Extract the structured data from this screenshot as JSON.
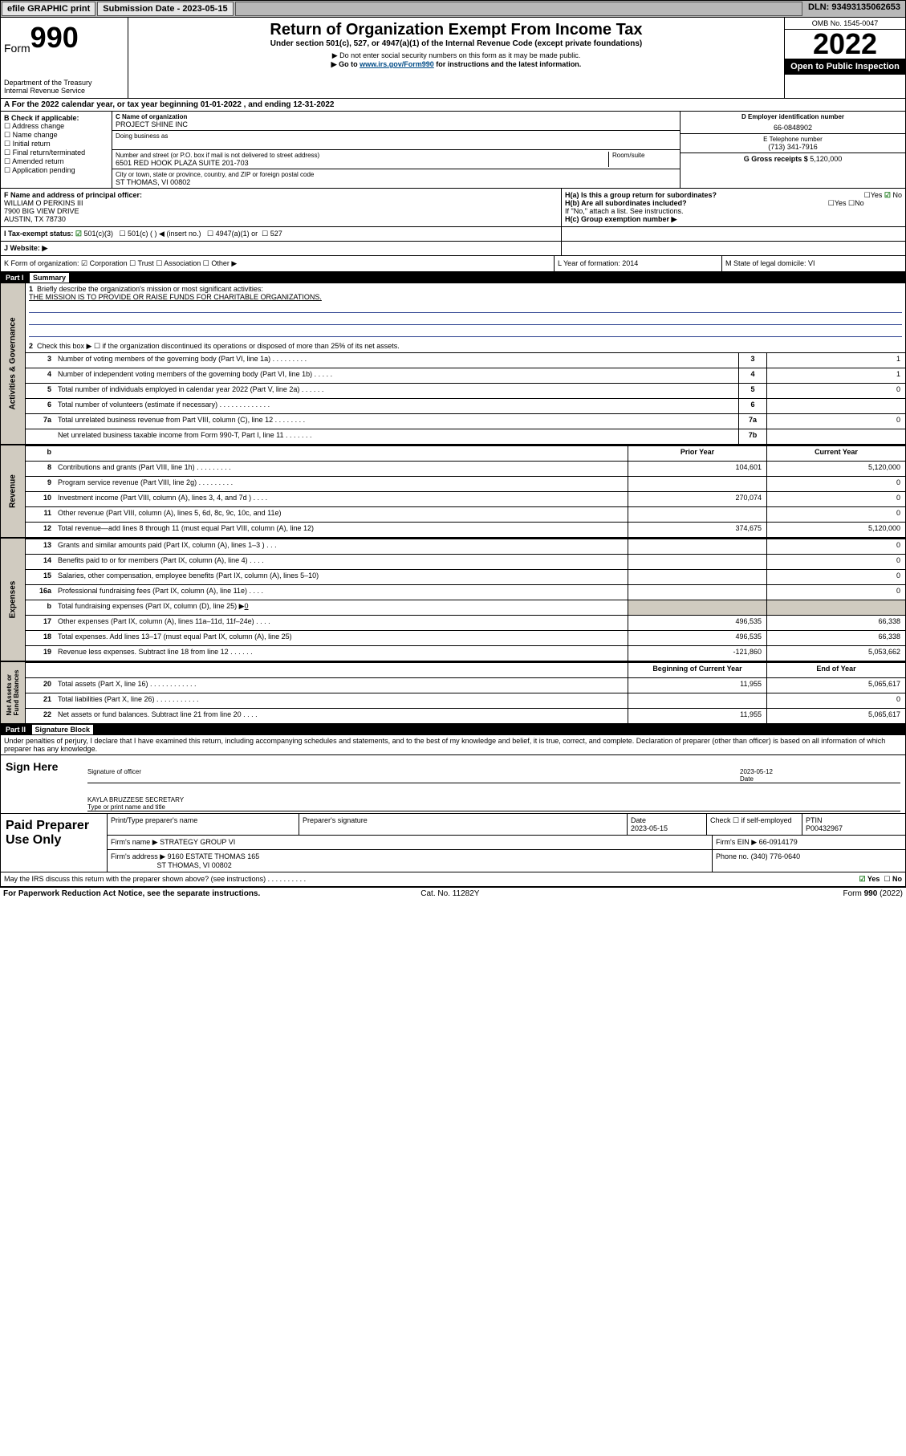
{
  "topbar": {
    "efile": "efile GRAPHIC print",
    "sub_label": "Submission Date - 2023-05-15",
    "dln": "DLN: 93493135062653"
  },
  "header": {
    "form_word": "Form",
    "form_num": "990",
    "title": "Return of Organization Exempt From Income Tax",
    "sub1": "Under section 501(c), 527, or 4947(a)(1) of the Internal Revenue Code (except private foundations)",
    "sub2": "▶ Do not enter social security numbers on this form as it may be made public.",
    "sub3_pre": "▶ Go to ",
    "sub3_link": "www.irs.gov/Form990",
    "sub3_post": " for instructions and the latest information.",
    "dept": "Department of the Treasury\nInternal Revenue Service",
    "omb": "OMB No. 1545-0047",
    "year": "2022",
    "openpub": "Open to Public Inspection"
  },
  "A": "A For the 2022 calendar year, or tax year beginning 01-01-2022   , and ending 12-31-2022",
  "B": {
    "label": "B Check if applicable:",
    "items": [
      "Address change",
      "Name change",
      "Initial return",
      "Final return/terminated",
      "Amended return",
      "Application pending"
    ]
  },
  "C": {
    "name_label": "C Name of organization",
    "name": "PROJECT SHINE INC",
    "dba_label": "Doing business as",
    "addr_label": "Number and street (or P.O. box if mail is not delivered to street address)",
    "room": "Room/suite",
    "addr": "6501 RED HOOK PLAZA SUITE 201-703",
    "city_label": "City or town, state or province, country, and ZIP or foreign postal code",
    "city": "ST THOMAS, VI  00802"
  },
  "D": {
    "label": "D Employer identification number",
    "val": "66-0848902"
  },
  "E": {
    "label": "E Telephone number",
    "val": "(713) 341-7916"
  },
  "G": {
    "label": "G Gross receipts $",
    "val": "5,120,000"
  },
  "F": {
    "label": "F  Name and address of principal officer:",
    "l1": "WILLIAM O PERKINS III",
    "l2": "7900 BIG VIEW DRIVE",
    "l3": "AUSTIN, TX  78730"
  },
  "H": {
    "a": "H(a)  Is this a group return for subordinates?",
    "a_yes": "Yes",
    "a_no": "No",
    "b": "H(b)  Are all subordinates included?",
    "b_yes": "Yes",
    "b_no": "No",
    "note": "If \"No,\" attach a list. See instructions.",
    "c": "H(c)  Group exemption number ▶"
  },
  "I": {
    "label": "I   Tax-exempt status:",
    "o1": "501(c)(3)",
    "o2": "501(c) (  ) ◀ (insert no.)",
    "o3": "4947(a)(1) or",
    "o4": "527"
  },
  "J": "J   Website: ▶",
  "K": "K Form of organization:   ☑ Corporation  ☐ Trust  ☐ Association  ☐ Other ▶",
  "L": "L Year of formation: 2014",
  "M": "M State of legal domicile: VI",
  "partI": {
    "hdr": "Part I",
    "title": "Summary"
  },
  "summary": {
    "q1": "Briefly describe the organization's mission or most significant activities:",
    "mission": "THE MISSION IS TO PROVIDE OR RAISE FUNDS FOR CHARITABLE ORGANIZATIONS.",
    "q2": "Check this box ▶ ☐  if the organization discontinued its operations or disposed of more than 25% of its net assets.",
    "rows_single": [
      {
        "n": "3",
        "d": "Number of voting members of the governing body (Part VI, line 1a)  .   .   .   .   .   .   .   .   .",
        "box": "3",
        "v": "1"
      },
      {
        "n": "4",
        "d": "Number of independent voting members of the governing body (Part VI, line 1b)  .   .   .   .   .",
        "box": "4",
        "v": "1"
      },
      {
        "n": "5",
        "d": "Total number of individuals employed in calendar year 2022 (Part V, line 2a)  .   .   .   .   .   .",
        "box": "5",
        "v": "0"
      },
      {
        "n": "6",
        "d": "Total number of volunteers (estimate if necessary)  .   .   .   .   .   .   .   .   .   .   .   .   .",
        "box": "6",
        "v": ""
      },
      {
        "n": "7a",
        "d": "Total unrelated business revenue from Part VIII, column (C), line 12  .   .   .   .   .   .   .   .",
        "box": "7a",
        "v": "0"
      },
      {
        "n": "",
        "d": "Net unrelated business taxable income from Form 990-T, Part I, line 11  .   .   .   .   .   .   .",
        "box": "7b",
        "v": ""
      }
    ],
    "hdr_prior": "Prior Year",
    "hdr_curr": "Current Year",
    "rows_rev": [
      {
        "n": "8",
        "d": "Contributions and grants (Part VIII, line 1h)  .   .   .   .   .   .   .   .   .",
        "p": "104,601",
        "c": "5,120,000"
      },
      {
        "n": "9",
        "d": "Program service revenue (Part VIII, line 2g)  .   .   .   .   .   .   .   .   .",
        "p": "",
        "c": "0"
      },
      {
        "n": "10",
        "d": "Investment income (Part VIII, column (A), lines 3, 4, and 7d )  .   .   .   .",
        "p": "270,074",
        "c": "0"
      },
      {
        "n": "11",
        "d": "Other revenue (Part VIII, column (A), lines 5, 6d, 8c, 9c, 10c, and 11e)",
        "p": "",
        "c": "0"
      },
      {
        "n": "12",
        "d": "Total revenue—add lines 8 through 11 (must equal Part VIII, column (A), line 12)",
        "p": "374,675",
        "c": "5,120,000"
      }
    ],
    "rows_exp": [
      {
        "n": "13",
        "d": "Grants and similar amounts paid (Part IX, column (A), lines 1–3 )  .   .   .",
        "p": "",
        "c": "0"
      },
      {
        "n": "14",
        "d": "Benefits paid to or for members (Part IX, column (A), line 4)  .   .   .   .",
        "p": "",
        "c": "0"
      },
      {
        "n": "15",
        "d": "Salaries, other compensation, employee benefits (Part IX, column (A), lines 5–10)",
        "p": "",
        "c": "0"
      },
      {
        "n": "16a",
        "d": "Professional fundraising fees (Part IX, column (A), line 11e)  .   .   .   .",
        "p": "",
        "c": "0"
      }
    ],
    "row16b": {
      "n": "b",
      "d_pre": "Total fundraising expenses (Part IX, column (D), line 25) ▶",
      "d_val": "0"
    },
    "rows_exp2": [
      {
        "n": "17",
        "d": "Other expenses (Part IX, column (A), lines 11a–11d, 11f–24e)  .   .   .   .",
        "p": "496,535",
        "c": "66,338"
      },
      {
        "n": "18",
        "d": "Total expenses. Add lines 13–17 (must equal Part IX, column (A), line 25)",
        "p": "496,535",
        "c": "66,338"
      },
      {
        "n": "19",
        "d": "Revenue less expenses. Subtract line 18 from line 12  .   .   .   .   .   .",
        "p": "-121,860",
        "c": "5,053,662"
      }
    ],
    "hdr_beg": "Beginning of Current Year",
    "hdr_end": "End of Year",
    "rows_net": [
      {
        "n": "20",
        "d": "Total assets (Part X, line 16)  .   .   .   .   .   .   .   .   .   .   .   .",
        "p": "11,955",
        "c": "5,065,617"
      },
      {
        "n": "21",
        "d": "Total liabilities (Part X, line 26)  .   .   .   .   .   .   .   .   .   .   .",
        "p": "",
        "c": "0"
      },
      {
        "n": "22",
        "d": "Net assets or fund balances. Subtract line 21 from line 20  .   .   .   .",
        "p": "11,955",
        "c": "5,065,617"
      }
    ],
    "vlabels": {
      "gov": "Activities & Governance",
      "rev": "Revenue",
      "exp": "Expenses",
      "net": "Net Assets or\nFund Balances"
    }
  },
  "partII": {
    "hdr": "Part II",
    "title": "Signature Block"
  },
  "sigtext": "Under penalties of perjury, I declare that I have examined this return, including accompanying schedules and statements, and to the best of my knowledge and belief, it is true, correct, and complete. Declaration of preparer (other than officer) is based on all information of which preparer has any knowledge.",
  "sign": {
    "label": "Sign Here",
    "l1": "Signature of officer",
    "date": "2023-05-12",
    "date_label": "Date",
    "l2_name": "KAYLA BRUZZESE  SECRETARY",
    "l2": "Type or print name and title"
  },
  "paid": {
    "label": "Paid Preparer Use Only",
    "h1": "Print/Type preparer's name",
    "h2": "Preparer's signature",
    "h3": "Date",
    "h4": "Check ☐ if self-employed",
    "h5": "PTIN",
    "date": "2023-05-15",
    "ptin": "P00432967",
    "firm_label": "Firm's name   ▶",
    "firm": "STRATEGY GROUP VI",
    "ein_label": "Firm's EIN ▶",
    "ein": "66-0914179",
    "addr_label": "Firm's address ▶",
    "addr1": "9160 ESTATE THOMAS 165",
    "addr2": "ST THOMAS, VI  00802",
    "phone_label": "Phone no.",
    "phone": "(340) 776-0640"
  },
  "irs_q": "May the IRS discuss this return with the preparer shown above? (see instructions)  .   .   .   .   .   .   .   .   .   .",
  "irs_yes": "Yes",
  "irs_no": "No",
  "footer": {
    "left": "For Paperwork Reduction Act Notice, see the separate instructions.",
    "mid": "Cat. No. 11282Y",
    "right": "Form 990 (2022)"
  }
}
